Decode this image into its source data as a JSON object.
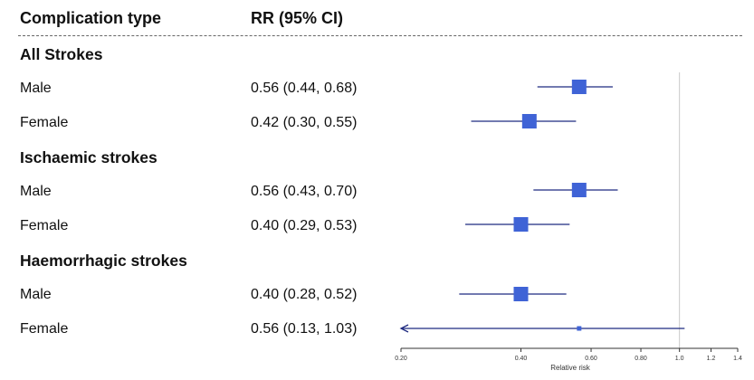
{
  "header": {
    "complication_type": "Complication type",
    "rr_ci": "RR (95% CI)"
  },
  "groups": [
    {
      "title": "All Strokes",
      "rows": [
        {
          "label": "Male",
          "rr_text": "0.56 (0.44, 0.68)"
        },
        {
          "label": "Female",
          "rr_text": "0.42 (0.30, 0.55)"
        }
      ]
    },
    {
      "title": "Ischaemic strokes",
      "rows": [
        {
          "label": "Male",
          "rr_text": "0.56 (0.43, 0.70)"
        },
        {
          "label": "Female",
          "rr_text": "0.40 (0.29, 0.53)"
        }
      ]
    },
    {
      "title": "Haemorrhagic strokes",
      "rows": [
        {
          "label": "Male",
          "rr_text": "0.40 (0.28, 0.52)"
        },
        {
          "label": "Female",
          "rr_text": "0.56 (0.13, 1.03)"
        }
      ]
    }
  ],
  "chart_data": {
    "type": "forest",
    "xlabel": "Relative risk",
    "xscale": "log",
    "xlim": [
      0.2,
      1.4
    ],
    "x_ticks": [
      "0.20",
      "0.40",
      "0.60",
      "0.80",
      "1.0",
      "1.2",
      "1.4"
    ],
    "reference_line": 1.0,
    "marker_color": "#3f63d6",
    "ci_color": "#1f2a80",
    "estimates": [
      {
        "group": "All Strokes",
        "label": "Male",
        "rr": 0.56,
        "lo": 0.44,
        "hi": 0.68,
        "weight": "large"
      },
      {
        "group": "All Strokes",
        "label": "Female",
        "rr": 0.42,
        "lo": 0.3,
        "hi": 0.55,
        "weight": "large"
      },
      {
        "group": "Ischaemic strokes",
        "label": "Male",
        "rr": 0.56,
        "lo": 0.43,
        "hi": 0.7,
        "weight": "large"
      },
      {
        "group": "Ischaemic strokes",
        "label": "Female",
        "rr": 0.4,
        "lo": 0.29,
        "hi": 0.53,
        "weight": "large"
      },
      {
        "group": "Haemorrhagic strokes",
        "label": "Male",
        "rr": 0.4,
        "lo": 0.28,
        "hi": 0.52,
        "weight": "large"
      },
      {
        "group": "Haemorrhagic strokes",
        "label": "Female",
        "rr": 0.56,
        "lo": 0.13,
        "hi": 1.03,
        "weight": "small",
        "lower_truncated": true
      }
    ]
  }
}
